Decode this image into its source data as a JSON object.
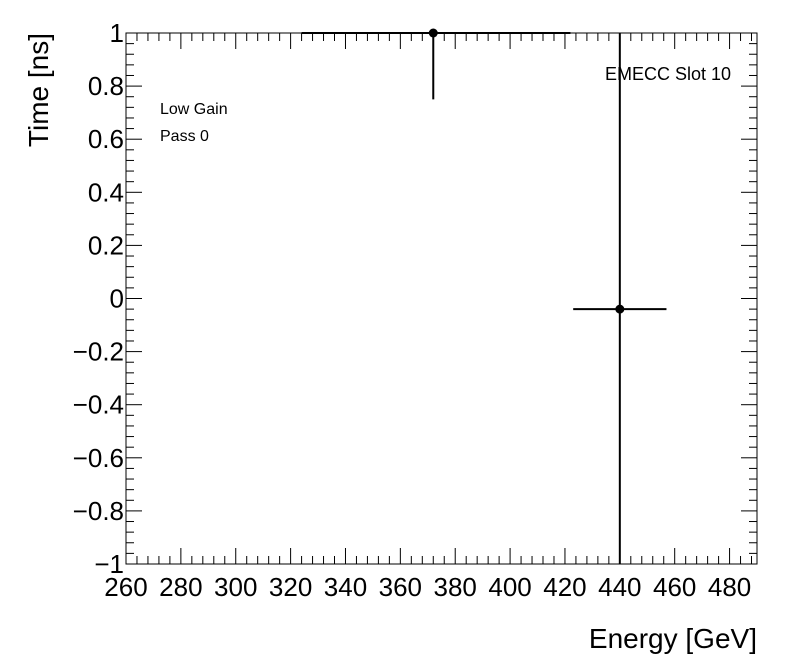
{
  "chart_data": {
    "type": "scatter",
    "title": "",
    "xlabel": "Energy [GeV]",
    "ylabel": "Time [ns]",
    "xlim": [
      260,
      490
    ],
    "ylim": [
      -1,
      1
    ],
    "x_ticks": [
      260,
      280,
      300,
      320,
      340,
      360,
      380,
      400,
      420,
      440,
      460,
      480
    ],
    "x_tick_labels": [
      "260",
      "280",
      "300",
      "320",
      "340",
      "360",
      "380",
      "400",
      "420",
      "440",
      "460",
      "480"
    ],
    "y_ticks": [
      -1,
      -0.8,
      -0.6,
      -0.4,
      -0.2,
      0,
      0.2,
      0.4,
      0.6,
      0.8,
      1
    ],
    "y_tick_labels": [
      "−1",
      "−0.8",
      "−0.6",
      "−0.4",
      "−0.2",
      "0",
      "0.2",
      "0.4",
      "0.6",
      "0.8",
      "1"
    ],
    "points": [
      {
        "x": 372,
        "y": 1.0,
        "xerr": [
          48,
          50
        ],
        "yerr": [
          0.25,
          0
        ]
      },
      {
        "x": 440,
        "y": -0.04,
        "xerr": [
          17,
          17
        ],
        "yerr": [
          0.96,
          1.04
        ]
      }
    ],
    "annotations": {
      "top_left": [
        "Low Gain",
        "Pass 0"
      ],
      "top_right": "EMECC Slot 10"
    },
    "grid": false,
    "legend": "none"
  }
}
